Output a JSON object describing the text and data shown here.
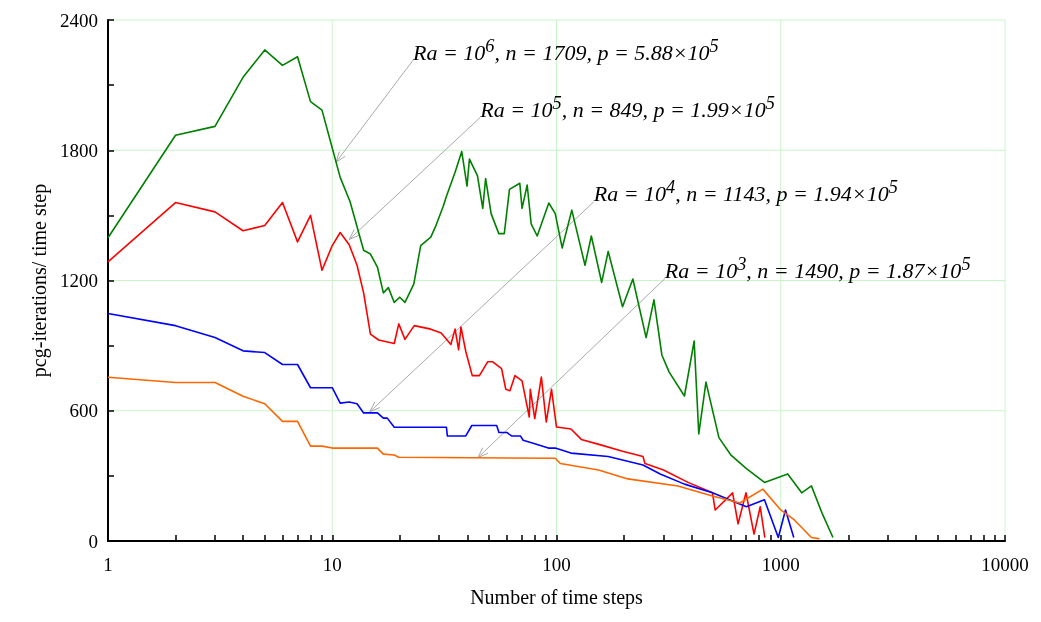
{
  "chart_data": {
    "type": "line",
    "xlabel": "Number of time steps",
    "ylabel": "pcg-iterations/ time step",
    "log": "x",
    "grid": true,
    "marker": "none",
    "line_style": "solid",
    "xlim": [
      1,
      10000
    ],
    "ylim": [
      0,
      2400
    ],
    "xticks": [
      1,
      {
        "value": 2,
        "label": null
      },
      {
        "value": 3,
        "label": null
      },
      {
        "value": 4,
        "label": null
      },
      {
        "value": 5,
        "label": null
      },
      {
        "value": 6,
        "label": null
      },
      {
        "value": 7,
        "label": null
      },
      {
        "value": 8,
        "label": null
      },
      {
        "value": 9,
        "label": null
      },
      10,
      {
        "value": 20,
        "label": null
      },
      {
        "value": 30,
        "label": null
      },
      {
        "value": 40,
        "label": null
      },
      {
        "value": 50,
        "label": null
      },
      {
        "value": 60,
        "label": null
      },
      {
        "value": 70,
        "label": null
      },
      {
        "value": 80,
        "label": null
      },
      {
        "value": 90,
        "label": null
      },
      100,
      {
        "value": 200,
        "label": null
      },
      {
        "value": 300,
        "label": null
      },
      {
        "value": 400,
        "label": null
      },
      {
        "value": 500,
        "label": null
      },
      {
        "value": 600,
        "label": null
      },
      {
        "value": 700,
        "label": null
      },
      {
        "value": 800,
        "label": null
      },
      {
        "value": 900,
        "label": null
      },
      1000,
      {
        "value": 2000,
        "label": null
      },
      {
        "value": 3000,
        "label": null
      },
      {
        "value": 4000,
        "label": null
      },
      {
        "value": 5000,
        "label": null
      },
      {
        "value": 6000,
        "label": null
      },
      {
        "value": 7000,
        "label": null
      },
      {
        "value": 8000,
        "label": null
      },
      {
        "value": 9000,
        "label": null
      },
      10000
    ],
    "yticks": [
      0,
      {
        "value": 300,
        "label": null
      },
      600,
      {
        "value": 900,
        "label": null
      },
      1200,
      {
        "value": 1500,
        "label": null
      },
      1800,
      {
        "value": 2100,
        "label": null
      },
      2400
    ],
    "series": [
      {
        "color": "#008000",
        "x": [
          1,
          2,
          3,
          4,
          5,
          6,
          7,
          8,
          9,
          10,
          10.85,
          12,
          13.8,
          14.8,
          15.9,
          16.9,
          17.8,
          18.9,
          20,
          21.1,
          23.1,
          24.8,
          27.5,
          29,
          31.2,
          32.3,
          35.3,
          37.8,
          39.9,
          40.9,
          44.4,
          46.9,
          48.3,
          51.1,
          55.3,
          58.5,
          61.7,
          68.6,
          70.2,
          74,
          77.1,
          82,
          92.4,
          98.7,
          106,
          117,
          134,
          143,
          159,
          170,
          197,
          219,
          251,
          272,
          295,
          318,
          372,
          411,
          431,
          464,
          530,
          598,
          703,
          846,
          1074,
          1240,
          1370,
          1530,
          1709
        ],
        "values": [
          1397,
          1869,
          1910,
          2136,
          2262,
          2191,
          2231,
          2024,
          1985,
          1810,
          1675,
          1564,
          1339,
          1322,
          1262,
          1143,
          1167,
          1099,
          1123,
          1099,
          1183,
          1361,
          1400,
          1453,
          1540,
          1588,
          1699,
          1794,
          1635,
          1759,
          1683,
          1532,
          1670,
          1508,
          1416,
          1416,
          1620,
          1648,
          1532,
          1640,
          1461,
          1405,
          1557,
          1508,
          1350,
          1524,
          1270,
          1405,
          1191,
          1334,
          1079,
          1207,
          937,
          1111,
          857,
          778,
          668,
          921,
          493,
          732,
          476,
          397,
          333,
          270,
          309,
          222,
          254,
          127,
          16
        ]
      },
      {
        "color": "#ff0000",
        "x": [
          1,
          2,
          3,
          4,
          5,
          6,
          7,
          8,
          9,
          10,
          10.85,
          11.9,
          12.9,
          13.8,
          14.8,
          16.1,
          18.9,
          19.8,
          21.1,
          23.2,
          27.5,
          30.6,
          33.8,
          35.3,
          36.6,
          37.5,
          39.4,
          42.1,
          45.3,
          49.4,
          51.8,
          56.9,
          59.4,
          62,
          65.3,
          70.2,
          75.6,
          76.4,
          80,
          85.6,
          90,
          95,
          100,
          116,
          129,
          156,
          197,
          243,
          248,
          300,
          386,
          496,
          510,
          610,
          645,
          700,
          760,
          810,
          849
        ],
        "values": [
          1286,
          1559,
          1516,
          1429,
          1453,
          1559,
          1378,
          1500,
          1247,
          1361,
          1421,
          1365,
          1270,
          1143,
          953,
          926,
          910,
          1000,
          929,
          992,
          976,
          958,
          905,
          976,
          881,
          985,
          873,
          762,
          762,
          826,
          826,
          794,
          699,
          692,
          762,
          738,
          571,
          699,
          564,
          755,
          548,
          699,
          525,
          516,
          468,
          444,
          413,
          389,
          357,
          327,
          270,
          222,
          143,
          222,
          79,
          222,
          32,
          158,
          16
        ]
      },
      {
        "color": "#0000ff",
        "x": [
          1,
          2,
          3,
          4,
          5,
          6,
          7,
          8,
          9,
          10,
          10.85,
          11.9,
          12.9,
          13.8,
          15.9,
          16.9,
          17.6,
          18.9,
          32.3,
          32.6,
          39.4,
          41.9,
          54.1,
          55.4,
          60,
          63,
          69,
          71,
          80,
          92,
          98.7,
          116,
          170,
          243,
          290,
          372,
          496,
          590,
          703,
          846,
          975,
          1050,
          1143
        ],
        "values": [
          1048,
          992,
          937,
          876,
          868,
          813,
          813,
          706,
          706,
          706,
          635,
          640,
          632,
          590,
          590,
          566,
          566,
          524,
          524,
          484,
          484,
          532,
          532,
          500,
          500,
          484,
          484,
          464,
          448,
          428,
          428,
          405,
          389,
          350,
          309,
          262,
          222,
          190,
          158,
          190,
          16,
          143,
          16
        ]
      },
      {
        "color": "#ff6600",
        "x": [
          1,
          2,
          3,
          4,
          5,
          6,
          7,
          8,
          9,
          10,
          15.9,
          16.9,
          18.9,
          19.8,
          98.7,
          104,
          154,
          208,
          348,
          496,
          657,
          832,
          1000,
          1150,
          1370,
          1490
        ],
        "values": [
          754,
          730,
          730,
          667,
          632,
          551,
          551,
          437,
          437,
          428,
          428,
          400,
          396,
          386,
          381,
          357,
          327,
          286,
          253,
          207,
          175,
          239,
          143,
          97,
          16,
          10
        ]
      }
    ],
    "annotations": [
      {
        "text": "Ra = 10$^{6}$, n = 1709, p = 5.88×10$^{5}$",
        "x": 10.4,
        "y": 1745
      },
      {
        "text": "Ra = 10$^{5}$, n = 849, p = 1.99×10$^{5}$",
        "x": 11.9,
        "y": 1389
      },
      {
        "text": "Ra = 10$^{4}$, n = 1143, p = 1.94×10$^{5}$",
        "x": 14.7,
        "y": 595
      },
      {
        "text": "Ra = 10$^{3}$, n = 1490, p = 1.87×10$^{5}$",
        "x": 44.6,
        "y": 384
      }
    ]
  }
}
